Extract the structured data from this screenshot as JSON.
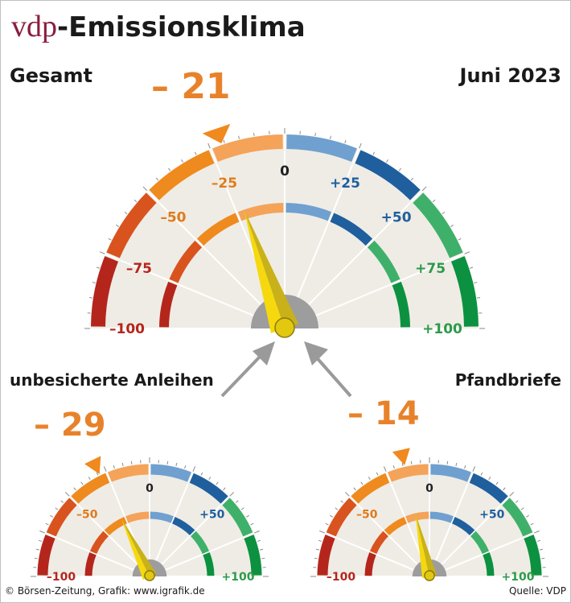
{
  "header": {
    "brand": "vdp",
    "title_rest": "-Emissionsklima",
    "left_label": "Gesamt",
    "date": "Juni 2023"
  },
  "gauges": {
    "main": {
      "value_label": "– 21",
      "value": -21,
      "ticks": [
        "–100",
        "–75",
        "–50",
        "–25",
        "0",
        "+25",
        "+50",
        "+75",
        "+100"
      ]
    },
    "left": {
      "title": "unbesicherte Anleihen",
      "value_label": "– 29",
      "value": -29,
      "ticks": [
        "–100",
        "–50",
        "0",
        "+50",
        "+100"
      ]
    },
    "right": {
      "title": "Pfandbriefe",
      "value_label": "– 14",
      "value": -14,
      "ticks": [
        "–100",
        "–50",
        "0",
        "+50",
        "+100"
      ]
    }
  },
  "footer": {
    "source_left": "© Börsen-Zeitung, Grafik: www.igrafik.de",
    "source_right": "Quelle: VDP"
  },
  "colors": {
    "brand": "#8b1d3f",
    "accent_orange": "#e8822a",
    "ring_segments": [
      "#b4261c",
      "#d9531f",
      "#ef8a1e",
      "#f4a359",
      "#6fa0cf",
      "#1f5f9e",
      "#3fb06a",
      "#0c9140"
    ],
    "tick_label_colors": [
      "#b4261c",
      "#b4261c",
      "#e07b1c",
      "#e07b1c",
      "#222222",
      "#1f5f9e",
      "#1f5f9e",
      "#2c9a4a",
      "#2c9a4a"
    ],
    "dial_face": "#efece5",
    "needle": [
      "#f5d90e",
      "#c9b11a"
    ]
  },
  "icons": [
    "arrow-left-up-icon",
    "arrow-right-up-icon"
  ]
}
